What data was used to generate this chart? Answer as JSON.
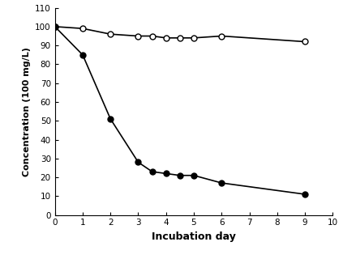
{
  "filled_x": [
    0,
    1,
    2,
    3,
    3.5,
    4,
    4.5,
    5,
    6,
    9
  ],
  "filled_y": [
    100,
    85,
    51,
    28,
    23,
    22,
    21,
    21,
    17,
    11
  ],
  "open_x": [
    0,
    1,
    2,
    3,
    3.5,
    4,
    4.5,
    5,
    6,
    9
  ],
  "open_y": [
    100,
    99,
    96,
    95,
    95,
    94,
    94,
    94,
    95,
    92
  ],
  "xlabel": "Incubation day",
  "ylabel": "Concentration (100 mg/L)",
  "xlim": [
    0,
    10
  ],
  "ylim": [
    0,
    110
  ],
  "xticks": [
    0,
    1,
    2,
    3,
    4,
    5,
    6,
    7,
    8,
    9,
    10
  ],
  "yticks": [
    0,
    10,
    20,
    30,
    40,
    50,
    60,
    70,
    80,
    90,
    100,
    110
  ],
  "line_color": "black",
  "markersize": 5,
  "linewidth": 1.2,
  "xlabel_fontsize": 9,
  "ylabel_fontsize": 8,
  "tick_fontsize": 7.5
}
